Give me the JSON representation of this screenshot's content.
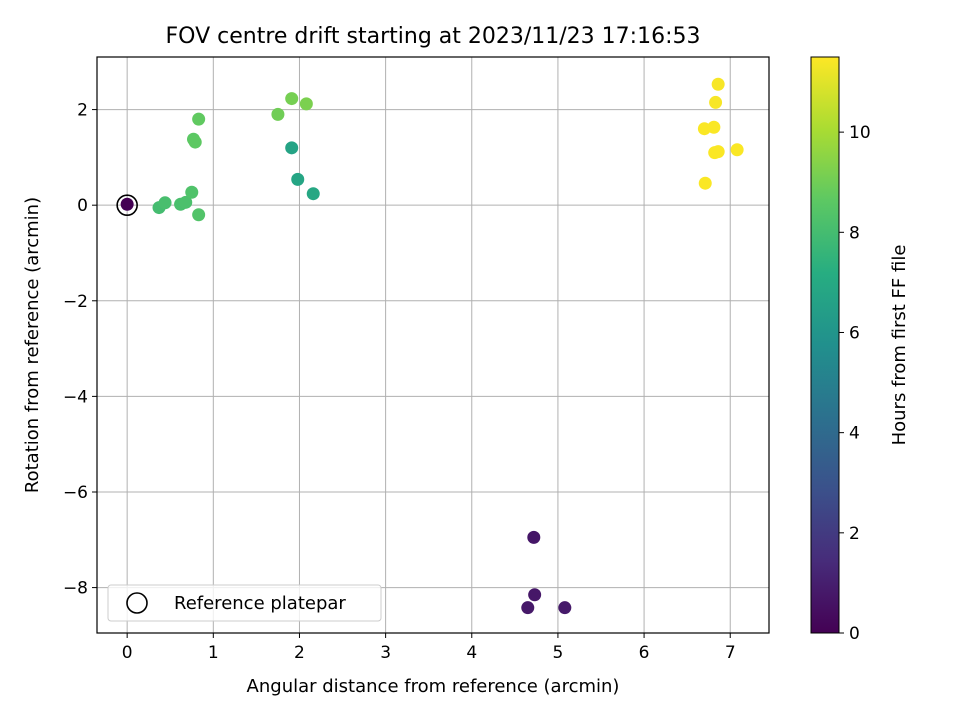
{
  "chart_data": {
    "type": "scatter",
    "title": "FOV centre drift starting at 2023/11/23 17:16:53",
    "xlabel": "Angular distance from reference (arcmin)",
    "ylabel": "Rotation from reference (arcmin)",
    "colorbar_label": "Hours from first FF file",
    "xlim": [
      -0.35,
      7.45
    ],
    "ylim": [
      -8.95,
      3.1
    ],
    "x_ticks": [
      0,
      1,
      2,
      3,
      4,
      5,
      6,
      7
    ],
    "y_ticks": [
      -8,
      -6,
      -4,
      -2,
      0,
      2
    ],
    "x_tick_labels": [
      "0",
      "1",
      "2",
      "3",
      "4",
      "5",
      "6",
      "7"
    ],
    "y_tick_labels": [
      "−8",
      "−6",
      "−4",
      "−2",
      "0",
      "2"
    ],
    "colorbar_range": [
      0,
      11.5
    ],
    "colorbar_ticks": [
      0,
      2,
      4,
      6,
      8,
      10
    ],
    "colorbar_tick_labels": [
      "0",
      "2",
      "4",
      "6",
      "8",
      "10"
    ],
    "colormap": "viridis",
    "grid": true,
    "legend": {
      "placement": "lower-left",
      "entries": [
        "Reference platepar"
      ]
    },
    "reference_point": {
      "x": 0,
      "y": 0
    },
    "points": [
      {
        "x": 0.0,
        "y": 0.02,
        "hours": 0.0
      },
      {
        "x": 4.72,
        "y": -6.95,
        "hours": 0.7
      },
      {
        "x": 4.73,
        "y": -8.15,
        "hours": 0.75
      },
      {
        "x": 4.65,
        "y": -8.42,
        "hours": 0.8
      },
      {
        "x": 5.08,
        "y": -8.42,
        "hours": 0.85
      },
      {
        "x": 1.91,
        "y": 1.2,
        "hours": 6.7
      },
      {
        "x": 1.98,
        "y": 0.54,
        "hours": 6.8
      },
      {
        "x": 2.16,
        "y": 0.24,
        "hours": 6.9
      },
      {
        "x": 0.37,
        "y": -0.05,
        "hours": 8.0
      },
      {
        "x": 0.44,
        "y": 0.05,
        "hours": 8.1
      },
      {
        "x": 0.62,
        "y": 0.02,
        "hours": 8.15
      },
      {
        "x": 0.68,
        "y": 0.06,
        "hours": 8.2
      },
      {
        "x": 0.75,
        "y": 0.27,
        "hours": 8.3
      },
      {
        "x": 0.83,
        "y": -0.2,
        "hours": 8.35
      },
      {
        "x": 0.77,
        "y": 1.38,
        "hours": 8.6
      },
      {
        "x": 0.79,
        "y": 1.32,
        "hours": 8.65
      },
      {
        "x": 0.83,
        "y": 1.8,
        "hours": 8.7
      },
      {
        "x": 1.75,
        "y": 1.9,
        "hours": 9.0
      },
      {
        "x": 1.91,
        "y": 2.23,
        "hours": 9.1
      },
      {
        "x": 2.08,
        "y": 2.12,
        "hours": 9.2
      },
      {
        "x": 6.86,
        "y": 2.53,
        "hours": 11.4
      },
      {
        "x": 6.83,
        "y": 2.15,
        "hours": 11.4
      },
      {
        "x": 6.7,
        "y": 1.6,
        "hours": 11.45
      },
      {
        "x": 6.81,
        "y": 1.63,
        "hours": 11.45
      },
      {
        "x": 6.82,
        "y": 1.1,
        "hours": 11.45
      },
      {
        "x": 6.86,
        "y": 1.12,
        "hours": 11.45
      },
      {
        "x": 7.08,
        "y": 1.16,
        "hours": 11.45
      },
      {
        "x": 6.71,
        "y": 0.46,
        "hours": 11.45
      }
    ]
  }
}
